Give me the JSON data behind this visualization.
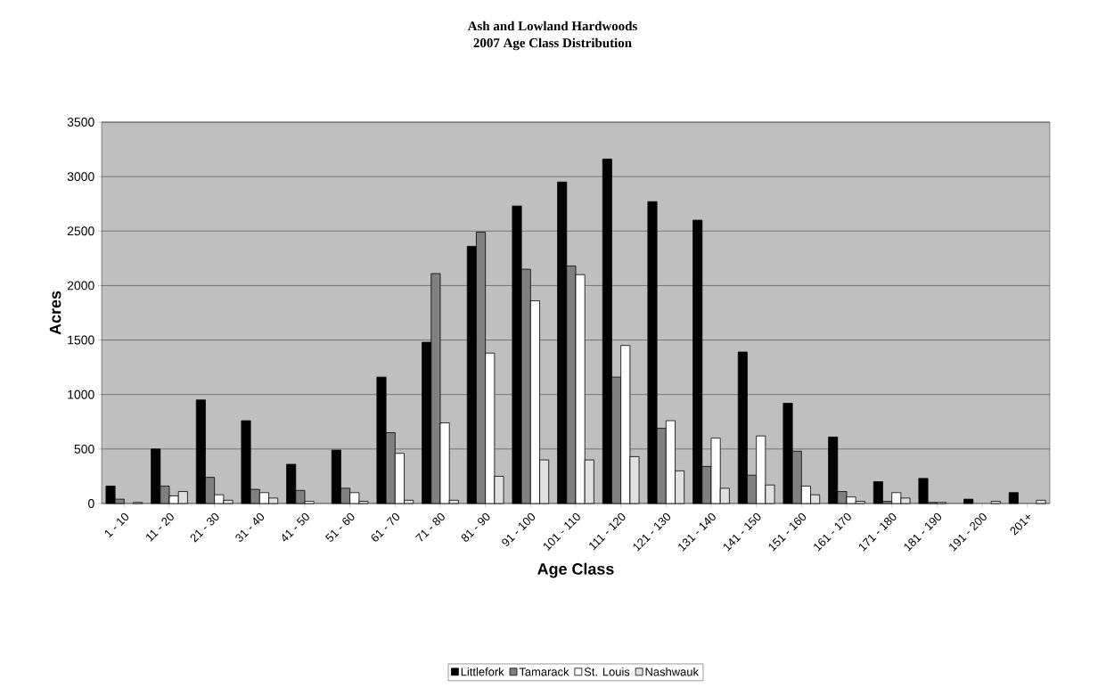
{
  "chart_data": {
    "type": "bar",
    "title": "Ash and Lowland Hardwoods",
    "subtitle": "2007 Age Class Distribution",
    "xlabel": "Age Class",
    "ylabel": "Acres",
    "categories": [
      "1 - 10",
      "11 - 20",
      "21 - 30",
      "31 - 40",
      "41 - 50",
      "51 - 60",
      "61 - 70",
      "71 - 80",
      "81 - 90",
      "91 - 100",
      "101 - 110",
      "111 - 120",
      "121 - 130",
      "131 - 140",
      "141 - 150",
      "151 - 160",
      "161 - 170",
      "171 - 180",
      "181 - 190",
      "191 - 200",
      "201+"
    ],
    "series": [
      {
        "name": "Littlefork",
        "color": "#000000",
        "values": [
          160,
          500,
          950,
          760,
          360,
          490,
          1160,
          1480,
          2360,
          2730,
          2950,
          3160,
          2770,
          2600,
          1390,
          920,
          610,
          200,
          230,
          40,
          100
        ]
      },
      {
        "name": "Tamarack",
        "color": "#808080",
        "values": [
          40,
          160,
          240,
          130,
          120,
          140,
          650,
          2110,
          2490,
          2150,
          2180,
          1160,
          690,
          340,
          260,
          480,
          110,
          20,
          10,
          null,
          null
        ]
      },
      {
        "name": "St. Louis",
        "color": "#ffffff",
        "values": [
          null,
          70,
          80,
          100,
          20,
          100,
          460,
          740,
          1380,
          1860,
          2100,
          1450,
          760,
          600,
          620,
          160,
          60,
          100,
          10,
          null,
          null
        ]
      },
      {
        "name": "Nashwauk",
        "color": "#e0e0e0",
        "values": [
          10,
          110,
          30,
          50,
          null,
          20,
          30,
          30,
          250,
          400,
          400,
          430,
          300,
          140,
          170,
          80,
          20,
          50,
          null,
          20,
          30
        ]
      }
    ],
    "ylim": [
      0,
      3500
    ],
    "yticks": [
      0,
      500,
      1000,
      1500,
      2000,
      2500,
      3000,
      3500
    ],
    "grid": "y",
    "legend": "bottom"
  }
}
